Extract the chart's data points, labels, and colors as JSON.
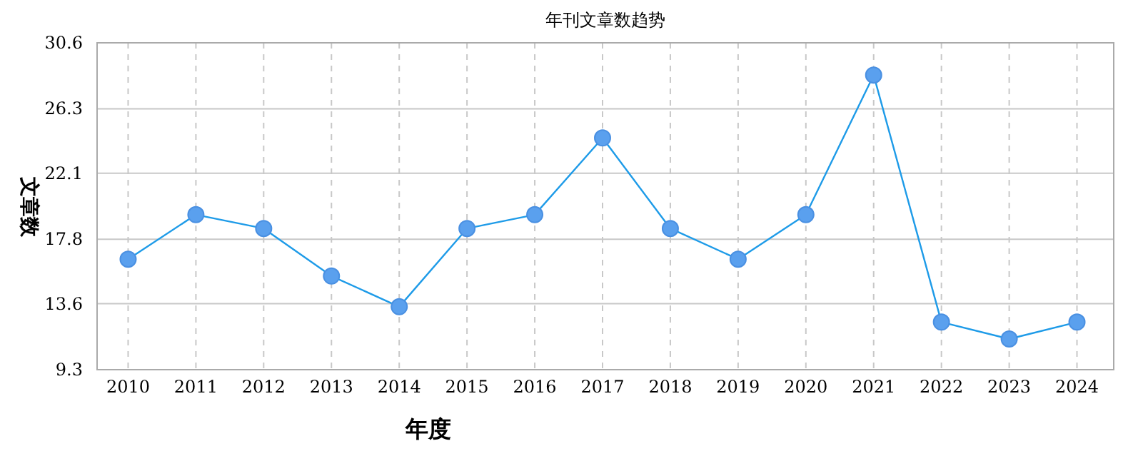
{
  "chart_data": {
    "type": "line",
    "title": "年刊文章数趋势",
    "xlabel": "年度",
    "ylabel": "文章数",
    "categories": [
      "2010",
      "2011",
      "2012",
      "2013",
      "2014",
      "2015",
      "2016",
      "2017",
      "2018",
      "2019",
      "2020",
      "2021",
      "2022",
      "2023",
      "2024"
    ],
    "series": [
      {
        "color": "#1e9be8",
        "values": [
          16.5,
          19.4,
          18.5,
          15.4,
          13.4,
          18.5,
          19.4,
          24.4,
          18.5,
          16.5,
          19.4,
          28.5,
          12.4,
          11.3,
          12.4
        ]
      }
    ],
    "ylim": [
      9.3,
      30.6
    ],
    "yticks": [
      9.3,
      13.6,
      17.8,
      22.1,
      26.3,
      30.6
    ],
    "grid": true,
    "marker": "circle",
    "line_style": "solid"
  }
}
